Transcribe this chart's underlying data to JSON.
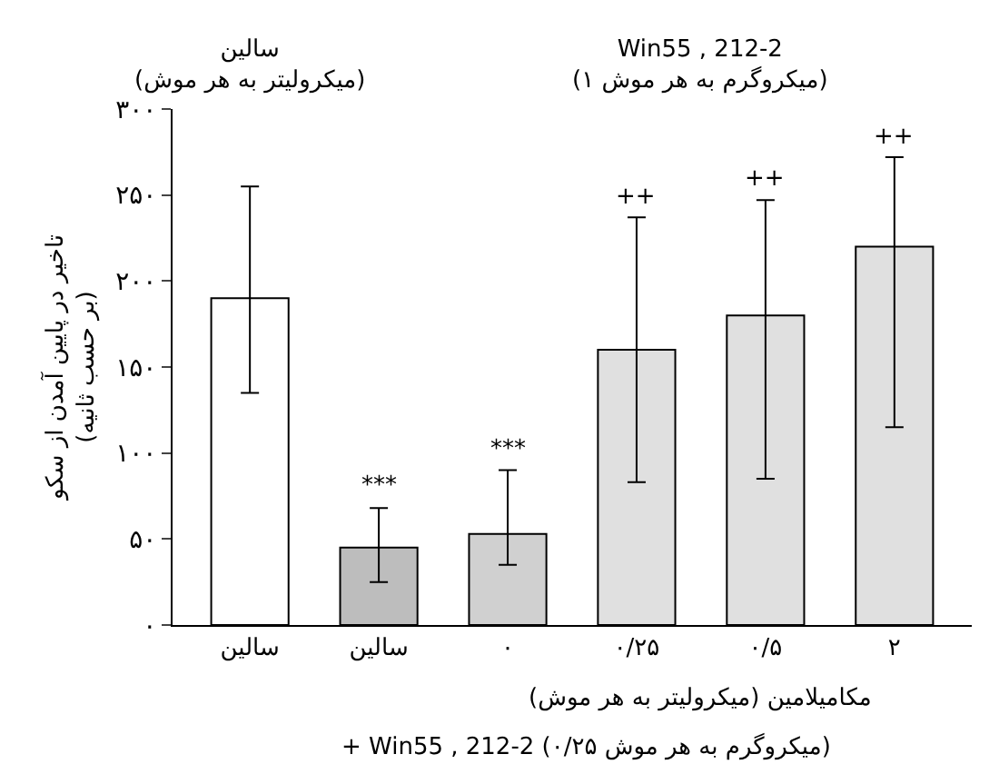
{
  "chart_data": {
    "type": "bar",
    "ylabel": "تاخیر در پایین آمدن از سکو\n(بر حسب ثانیه)",
    "categories": [
      "سالین",
      "سالین",
      "۰",
      "۰/۲۵",
      "۰/۵",
      "۲"
    ],
    "values": [
      190,
      45,
      53,
      160,
      180,
      220
    ],
    "errors": [
      [
        135,
        255
      ],
      [
        25,
        68
      ],
      [
        35,
        90
      ],
      [
        83,
        237
      ],
      [
        85,
        247
      ],
      [
        115,
        272
      ]
    ],
    "colors": [
      "#ffffff",
      "#bdbdbd",
      "#d0d0d0",
      "#e0e0e0",
      "#e0e0e0",
      "#e0e0e0"
    ],
    "ylim": [
      0,
      300
    ],
    "yticks": [
      {
        "value": 0,
        "label": "۰"
      },
      {
        "value": 50,
        "label": "۵۰"
      },
      {
        "value": 100,
        "label": "۱۰۰"
      },
      {
        "value": 150,
        "label": "۱۵۰"
      },
      {
        "value": 200,
        "label": "۲۰۰"
      },
      {
        "value": 250,
        "label": "۲۵۰"
      },
      {
        "value": 300,
        "label": "۳۰۰"
      }
    ],
    "grid": false,
    "annotations": [
      "سالین\n(میکرولیتر به هر موش)",
      "Win55 , 212-2\n(۱ میکروگرم به هر موش)",
      "مکامیلامین (میکرولیتر به هر موش)",
      "+ Win55 , 212-2 (۰/۲۵ میکروگرم به هر موش)",
      "***",
      {
        "text": "***",
        "x": "۰",
        "y": 92
      },
      {
        "text": "++",
        "x": "۰/۲۵",
        "y": 239
      },
      {
        "text": "++",
        "x": "۰/۵",
        "y": 249
      },
      {
        "text": "++",
        "x": "۲",
        "y": 274
      }
    ]
  }
}
